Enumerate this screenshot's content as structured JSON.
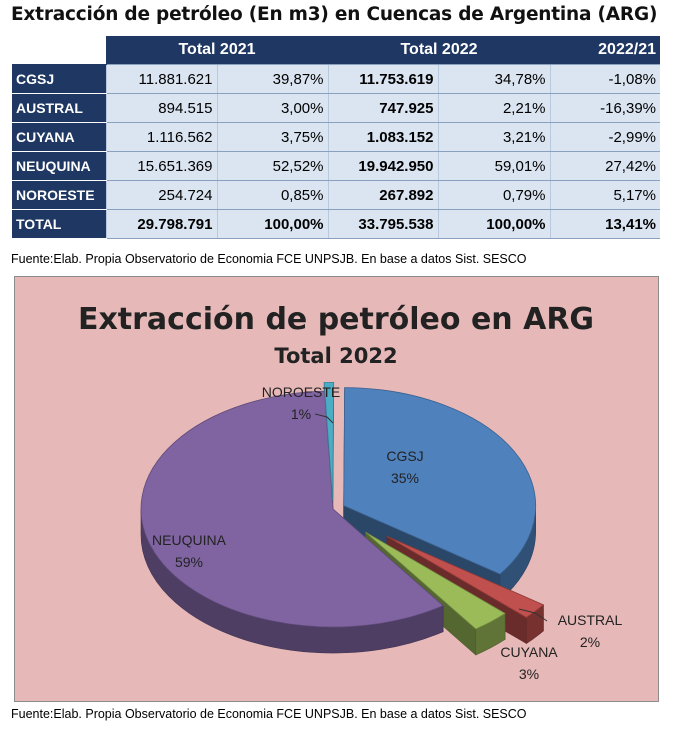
{
  "table": {
    "title": "Extracción de petróleo (En m3) en Cuencas de Argentina (ARG)",
    "headers": [
      "Total 2021",
      "Total 2022",
      "2022/21"
    ],
    "rows": [
      {
        "region": "CGSJ",
        "v2021": "11.881.621",
        "p2021": "39,87%",
        "v2022": "11.753.619",
        "p2022": "34,78%",
        "var": "-1,08%"
      },
      {
        "region": "AUSTRAL",
        "v2021": "894.515",
        "p2021": "3,00%",
        "v2022": "747.925",
        "p2022": "2,21%",
        "var": "-16,39%"
      },
      {
        "region": "CUYANA",
        "v2021": "1.116.562",
        "p2021": "3,75%",
        "v2022": "1.083.152",
        "p2022": "3,21%",
        "var": "-2,99%"
      },
      {
        "region": "NEUQUINA",
        "v2021": "15.651.369",
        "p2021": "52,52%",
        "v2022": "19.942.950",
        "p2022": "59,01%",
        "var": "27,42%"
      },
      {
        "region": "NOROESTE",
        "v2021": "254.724",
        "p2021": "0,85%",
        "v2022": "267.892",
        "p2022": "0,79%",
        "var": "5,17%"
      },
      {
        "region": "TOTAL",
        "v2021": "29.798.791",
        "p2021": "100,00%",
        "v2022": "33.795.538",
        "p2022": "100,00%",
        "var": "13,41%"
      }
    ],
    "source": "Fuente:Elab. Propia Observatorio de Economia FCE UNPSJB. En base a datos Sist. SESCO"
  },
  "chart_data": {
    "type": "pie",
    "title": "Extracción de petróleo en ARG",
    "subtitle": "Total 2022",
    "slices": [
      {
        "label": "CGSJ",
        "pct_label": "35%",
        "value": 34.78,
        "color": "#4f81bd"
      },
      {
        "label": "AUSTRAL",
        "pct_label": "2%",
        "value": 2.21,
        "color": "#c0504d"
      },
      {
        "label": "CUYANA",
        "pct_label": "3%",
        "value": 3.21,
        "color": "#9bbb59"
      },
      {
        "label": "NEUQUINA",
        "pct_label": "59%",
        "value": 59.01,
        "color": "#8064a2"
      },
      {
        "label": "NOROESTE",
        "pct_label": "1%",
        "value": 0.79,
        "color": "#4bacc6"
      }
    ],
    "background": "#e6b9b8",
    "source": "Fuente:Elab. Propia Observatorio de Economia FCE UNPSJB. En base a datos Sist. SESCO"
  }
}
